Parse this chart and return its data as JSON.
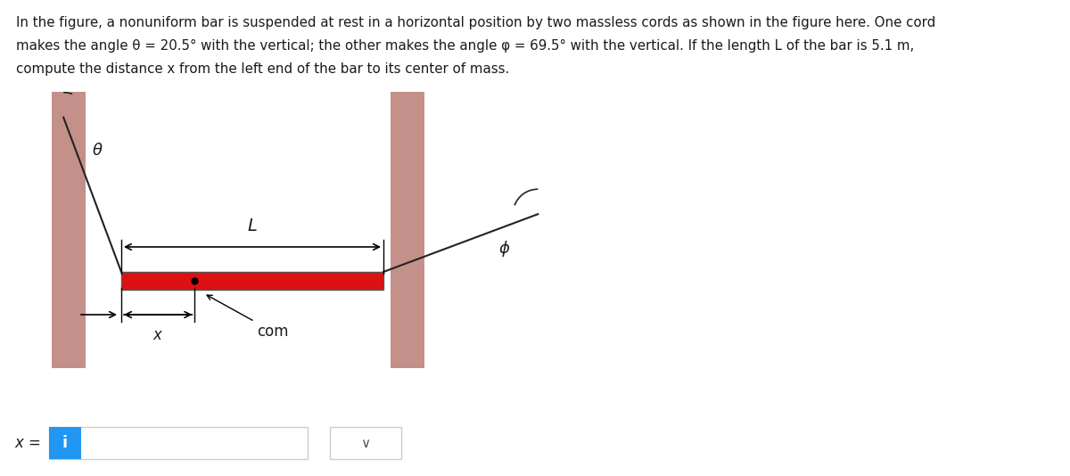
{
  "bg_color": "#ffffff",
  "wall_color": "#c4908a",
  "bar_color": "#dd1111",
  "bar_edge_color": "#555555",
  "cord_color": "#222222",
  "text_color": "#1a1a1a",
  "description_lines": [
    "In the figure, a nonuniform bar is suspended at rest in a horizontal position by two massless cords as shown in the figure here. One cord",
    "makes the angle θ = 20.5° with the vertical; the other makes the angle φ = 69.5° with the vertical. If the length L of the bar is 5.1 m,",
    "compute the distance x from the left end of the bar to its center of mass."
  ],
  "theta_deg": 20.5,
  "phi_deg": 69.5,
  "figsize": [
    12.0,
    5.34
  ],
  "dpi": 100,
  "wall_color_hex": "#c4908a",
  "input_box_color": "#2196F3",
  "input_border_color": "#cccccc",
  "dropdown_border_color": "#cccccc"
}
